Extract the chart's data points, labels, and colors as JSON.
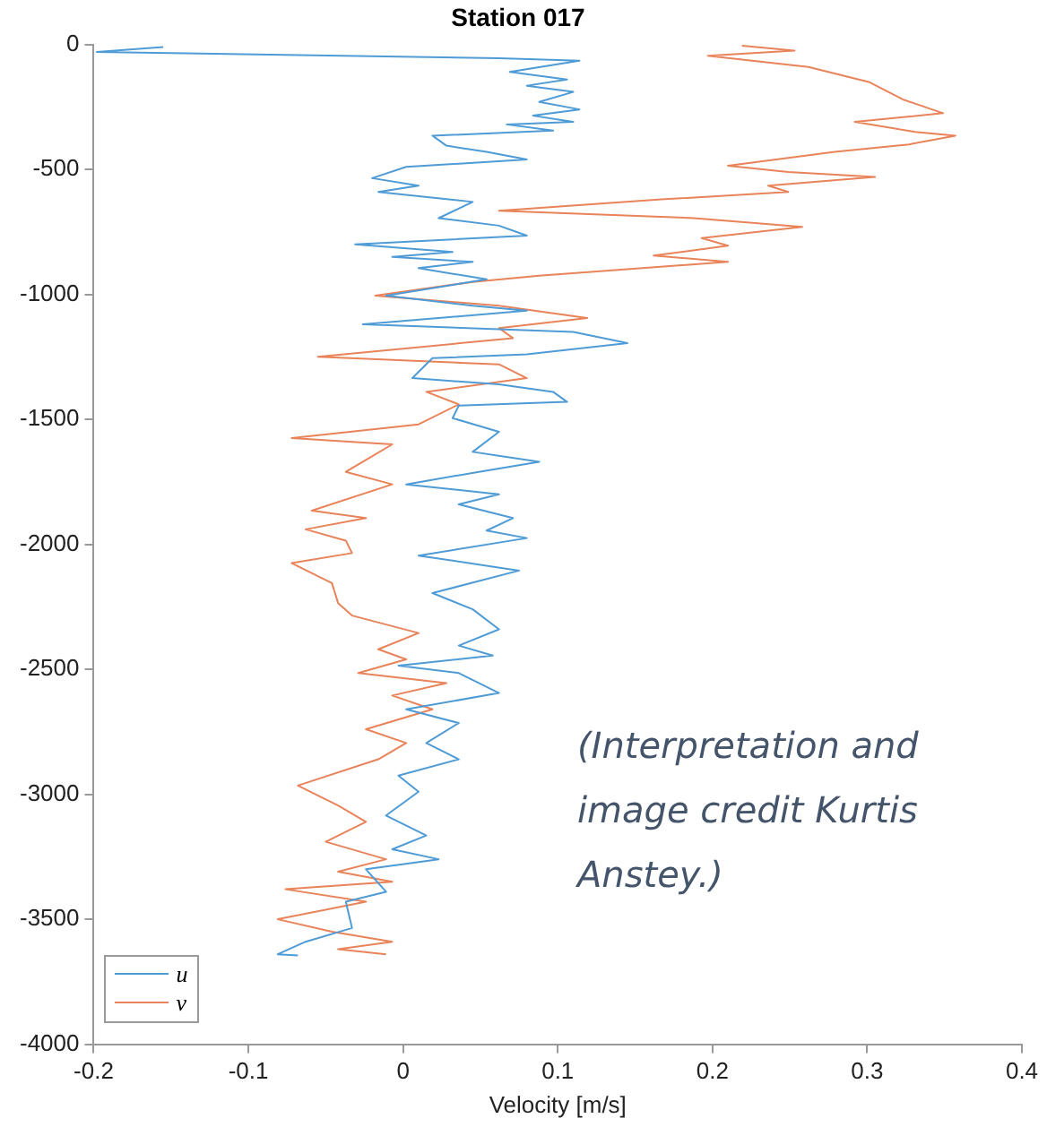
{
  "chart_data": {
    "type": "line",
    "title": "Station 017",
    "xlabel": "Velocity [m/s]",
    "xlim": [
      -0.2,
      0.4
    ],
    "xticks": [
      -0.2,
      -0.1,
      0,
      0.1,
      0.2,
      0.3,
      0.4
    ],
    "ylim": [
      -4000,
      0
    ],
    "yticks": [
      -4000,
      -3500,
      -3000,
      -2500,
      -2000,
      -1500,
      -1000,
      -500,
      0
    ],
    "grid": false,
    "legend": "bottom left",
    "marker": "none",
    "line_style": "solid",
    "annotations": [
      "(Interpretation and image credit Kurtis Anstey.)"
    ],
    "series": [
      {
        "name": "u",
        "color": "#4f9bd6",
        "x": [
          -0.155,
          -0.198,
          0.062,
          0.114,
          0.069,
          0.106,
          0.08,
          0.11,
          0.088,
          0.114,
          0.084,
          0.11,
          0.067,
          0.097,
          0.019,
          0.028,
          0.054,
          0.08,
          0.002,
          -0.02,
          0.01,
          -0.016,
          0.045,
          0.023,
          0.062,
          0.08,
          -0.031,
          0.032,
          -0.007,
          0.045,
          0.01,
          0.054,
          -0.011,
          0.045,
          0.08,
          -0.026,
          0.11,
          0.145,
          0.08,
          0.019,
          0.006,
          0.062,
          0.097,
          0.106,
          0.036,
          0.032,
          0.062,
          0.045,
          0.088,
          0.049,
          0.002,
          0.062,
          0.036,
          0.071,
          0.054,
          0.08,
          0.01,
          0.075,
          0.019,
          0.045,
          0.062,
          0.036,
          0.058,
          -0.003,
          0.036,
          0.062,
          0.002,
          0.036,
          0.015,
          0.036,
          -0.003,
          0.01,
          -0.011,
          0.015,
          -0.007,
          0.023,
          -0.024,
          -0.011,
          -0.037,
          -0.033,
          -0.063,
          -0.081,
          -0.068
        ],
        "values": [
          -10,
          -30,
          -55,
          -65,
          -110,
          -140,
          -165,
          -190,
          -230,
          -260,
          -285,
          -310,
          -320,
          -345,
          -365,
          -405,
          -430,
          -460,
          -490,
          -535,
          -565,
          -590,
          -630,
          -695,
          -725,
          -765,
          -800,
          -830,
          -850,
          -870,
          -895,
          -940,
          -1005,
          -1045,
          -1065,
          -1120,
          -1150,
          -1195,
          -1240,
          -1255,
          -1335,
          -1360,
          -1390,
          -1430,
          -1445,
          -1495,
          -1550,
          -1630,
          -1670,
          -1710,
          -1760,
          -1800,
          -1840,
          -1895,
          -1945,
          -1975,
          -2045,
          -2105,
          -2195,
          -2260,
          -2340,
          -2405,
          -2445,
          -2485,
          -2515,
          -2595,
          -2660,
          -2715,
          -2795,
          -2860,
          -2925,
          -2990,
          -3085,
          -3165,
          -3220,
          -3260,
          -3300,
          -3390,
          -3430,
          -3535,
          -3590,
          -3640,
          -3645
        ]
      },
      {
        "name": "v",
        "color": "#e8835a",
        "x": [
          0.219,
          0.253,
          0.197,
          0.262,
          0.301,
          0.323,
          0.349,
          0.292,
          0.331,
          0.357,
          0.327,
          0.279,
          0.21,
          0.249,
          0.305,
          0.236,
          0.249,
          0.167,
          0.062,
          0.188,
          0.258,
          0.193,
          0.21,
          0.162,
          0.21,
          0.088,
          0.045,
          -0.018,
          0.062,
          0.119,
          0.062,
          0.071,
          -0.055,
          0.062,
          0.08,
          0.015,
          0.036,
          0.01,
          -0.072,
          -0.007,
          -0.037,
          -0.007,
          -0.059,
          -0.024,
          -0.063,
          -0.037,
          -0.033,
          -0.072,
          -0.046,
          -0.042,
          -0.033,
          0.01,
          -0.016,
          0.002,
          -0.029,
          0.028,
          -0.007,
          0.019,
          -0.024,
          0.002,
          -0.016,
          -0.068,
          -0.042,
          -0.024,
          -0.05,
          -0.011,
          -0.042,
          -0.007,
          -0.076,
          -0.024,
          -0.081,
          -0.046,
          -0.007,
          -0.042,
          -0.011
        ],
        "values": [
          -5,
          -25,
          -45,
          -90,
          -150,
          -220,
          -275,
          -310,
          -350,
          -365,
          -400,
          -430,
          -485,
          -510,
          -530,
          -565,
          -590,
          -620,
          -665,
          -695,
          -730,
          -775,
          -805,
          -845,
          -870,
          -925,
          -950,
          -1005,
          -1045,
          -1095,
          -1135,
          -1175,
          -1250,
          -1280,
          -1335,
          -1390,
          -1440,
          -1520,
          -1575,
          -1600,
          -1710,
          -1760,
          -1865,
          -1895,
          -1940,
          -1985,
          -2035,
          -2075,
          -2155,
          -2235,
          -2285,
          -2355,
          -2420,
          -2460,
          -2515,
          -2555,
          -2605,
          -2660,
          -2740,
          -2795,
          -2860,
          -2965,
          -3045,
          -3110,
          -3190,
          -3260,
          -3310,
          -3350,
          -3380,
          -3430,
          -3500,
          -3550,
          -3590,
          -3620,
          -3640
        ]
      }
    ]
  }
}
